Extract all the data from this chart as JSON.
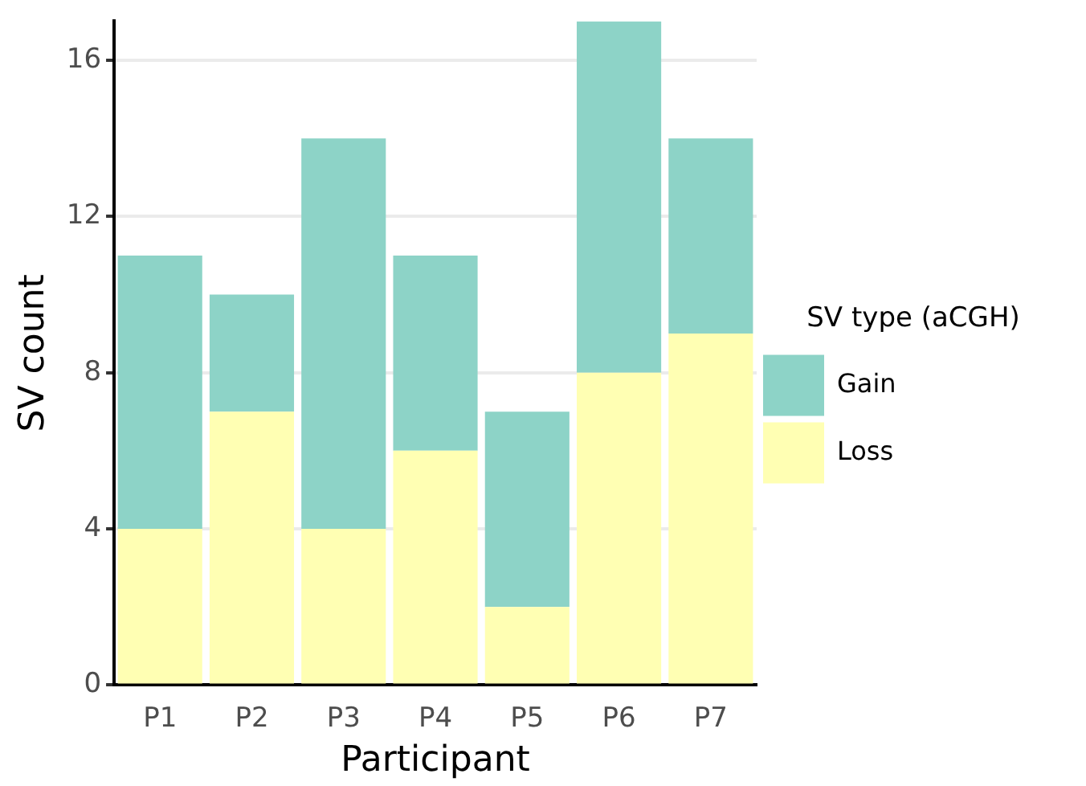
{
  "chart_data": {
    "type": "bar",
    "xlabel": "Participant",
    "ylabel": "SV count",
    "legend_title": "SV type (aCGH)",
    "categories": [
      "P1",
      "P2",
      "P3",
      "P4",
      "P5",
      "P6",
      "P7"
    ],
    "series": [
      {
        "name": "Loss",
        "color": "#ffffb3",
        "values": [
          4,
          7,
          4,
          6,
          2,
          8,
          9
        ]
      },
      {
        "name": "Gain",
        "color": "#8dd3c7",
        "values": [
          7,
          3,
          10,
          5,
          5,
          9,
          5
        ]
      }
    ],
    "stacked": true,
    "ylim": [
      0,
      17
    ],
    "yticks": [
      0,
      4,
      8,
      12,
      16
    ],
    "grid": "y",
    "legend": "right"
  }
}
